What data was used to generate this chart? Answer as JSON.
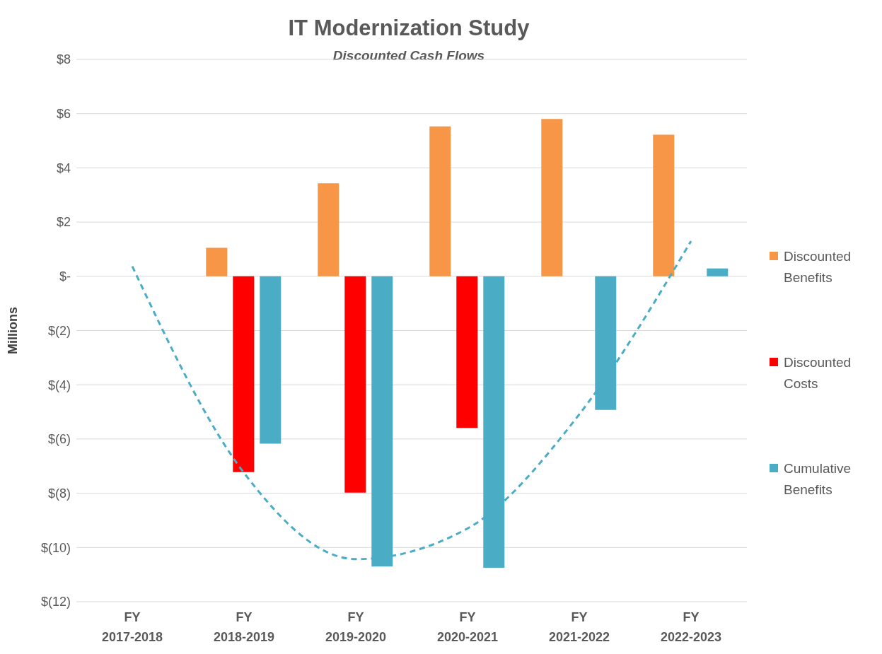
{
  "chart_data": {
    "type": "bar",
    "title": "IT Modernization Study",
    "subtitle": "Discounted Cash Flows",
    "ylabel": "Millions",
    "categories": [
      "FY 2017-2018",
      "FY 2018-2019",
      "FY 2019-2020",
      "FY 2020-2021",
      "FY 2021-2022",
      "FY 2022-2023"
    ],
    "series": [
      {
        "name": "Discounted Benefits",
        "color": "#f79646",
        "values": [
          null,
          1.05,
          3.43,
          5.53,
          5.8,
          5.22
        ]
      },
      {
        "name": "Discounted Costs",
        "color": "#ff0000",
        "values": [
          null,
          -7.22,
          -7.98,
          -5.59,
          null,
          null
        ]
      },
      {
        "name": "Cumulative Benefits",
        "color": "#4bacc6",
        "values": [
          null,
          -6.17,
          -10.7,
          -10.75,
          -4.93,
          0.29
        ]
      },
      {
        "type": "line",
        "color": "#4bacc6",
        "line_style": "dashed",
        "marker": "none",
        "values": [
          0.37,
          -7.25,
          -10.43,
          -9.3,
          -5.09,
          1.3
        ]
      }
    ],
    "ylim": [
      -12,
      8
    ],
    "yticks": [
      {
        "value": -12,
        "label": "$(12)"
      },
      {
        "value": -10,
        "label": "$(10)"
      },
      {
        "value": -8,
        "label": "$(8)"
      },
      {
        "value": -6,
        "label": "$(6)"
      },
      {
        "value": -4,
        "label": "$(4)"
      },
      {
        "value": -2,
        "label": "$(2)"
      },
      {
        "value": 0,
        "label": "$-"
      },
      {
        "value": 2,
        "label": "$2"
      },
      {
        "value": 4,
        "label": "$4"
      },
      {
        "value": 6,
        "label": "$6"
      },
      {
        "value": 8,
        "label": "$8"
      }
    ],
    "grid": "y",
    "legend": "right"
  }
}
